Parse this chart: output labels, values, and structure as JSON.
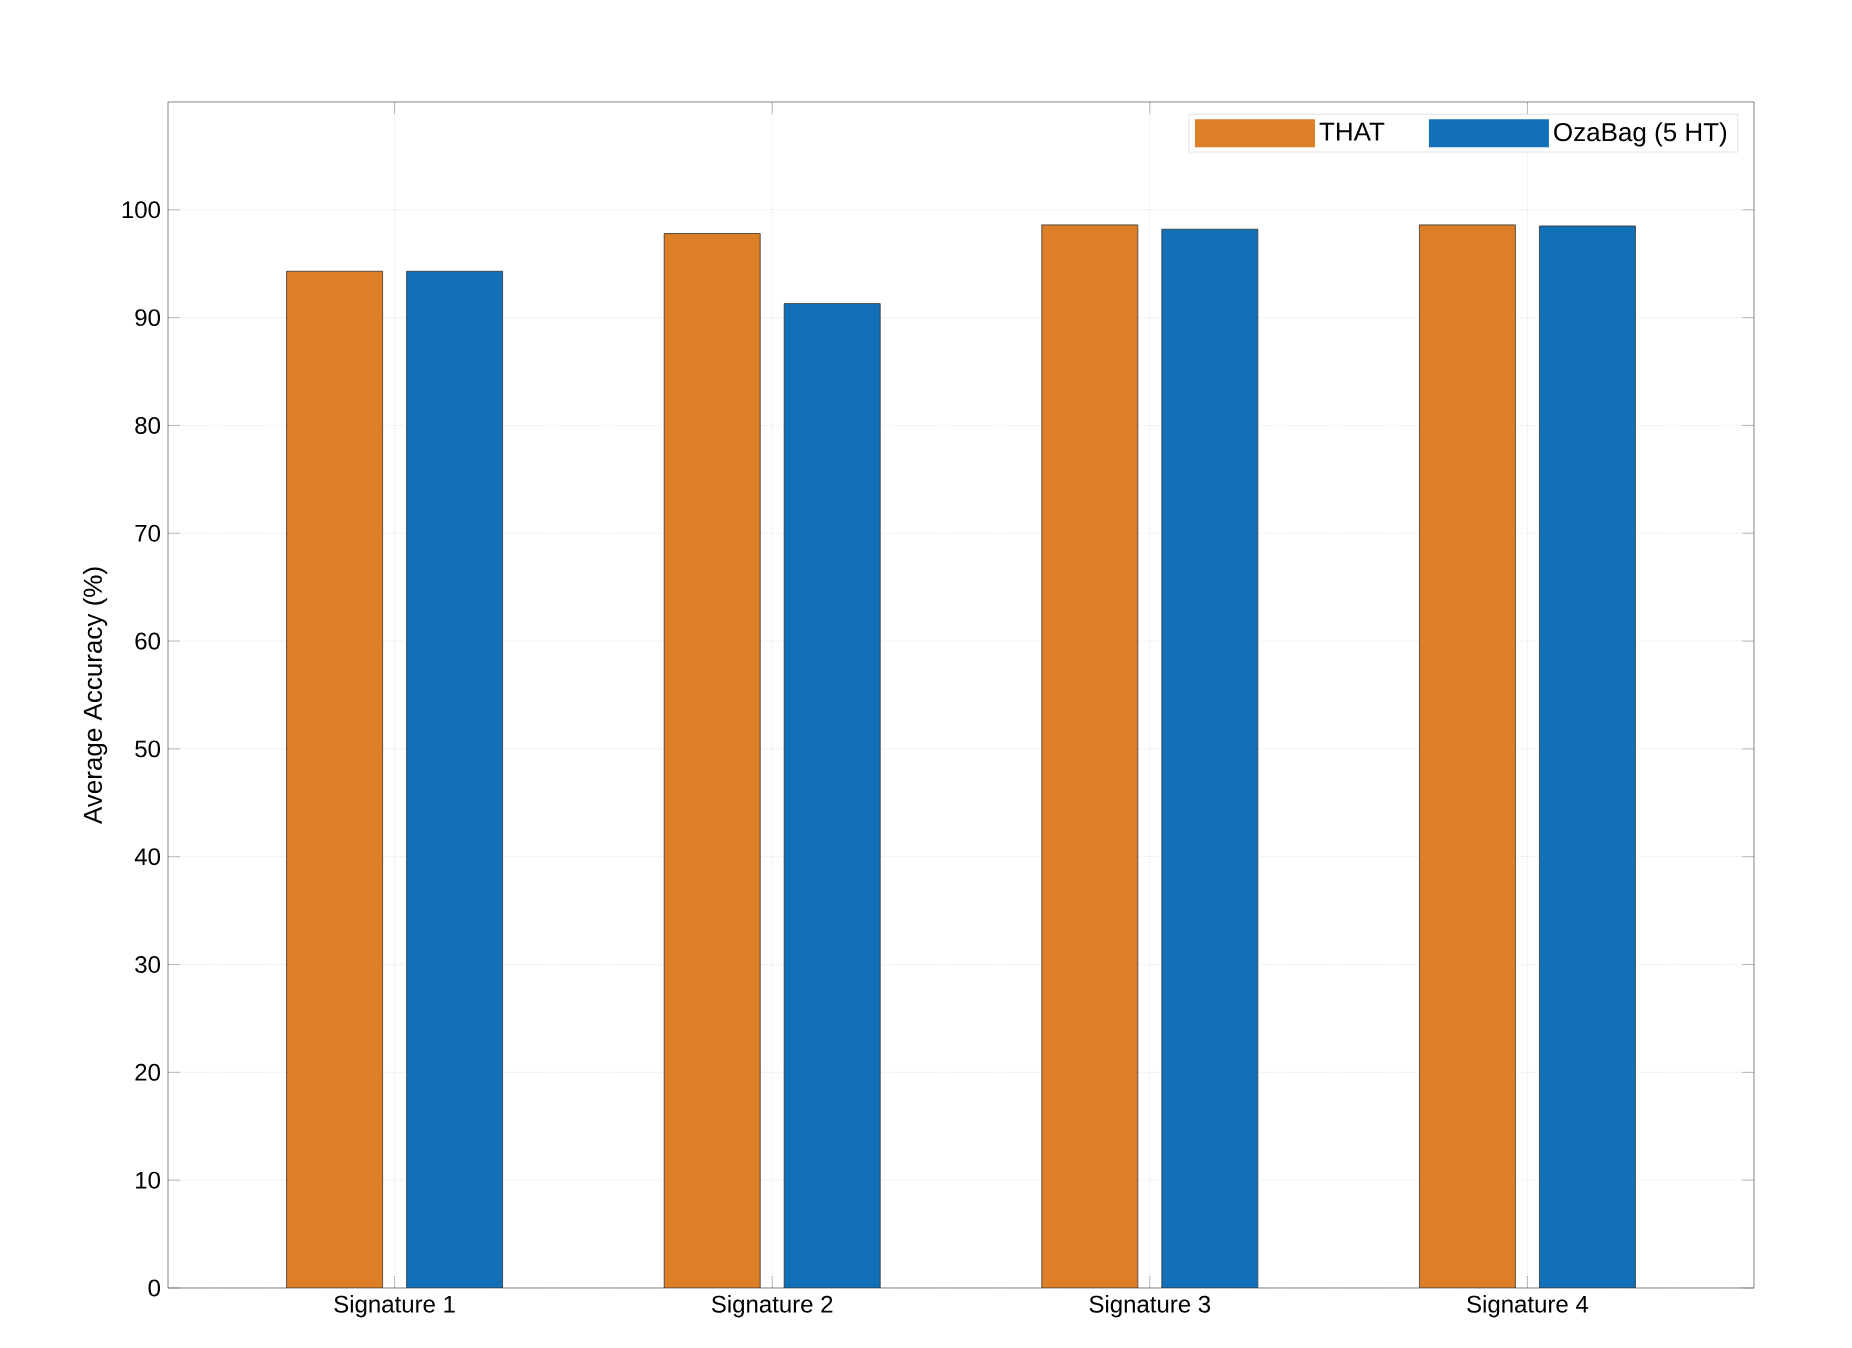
{
  "chart_data": {
    "type": "bar",
    "ylabel": "Average Accuracy (%)",
    "categories": [
      "Signature 1",
      "Signature 2",
      "Signature 3",
      "Signature 4"
    ],
    "series": [
      {
        "name": "THAT",
        "color": "#dc7f27",
        "values": [
          94.3,
          97.8,
          98.6,
          98.6
        ]
      },
      {
        "name": "OzaBag (5 HT)",
        "color": "#1170b8",
        "values": [
          94.3,
          91.3,
          98.2,
          98.5
        ]
      }
    ],
    "ylim": [
      0,
      110
    ],
    "yticks": [
      0,
      10,
      20,
      30,
      40,
      50,
      60,
      70,
      80,
      90,
      100
    ],
    "grid": true,
    "legend": "top right"
  }
}
